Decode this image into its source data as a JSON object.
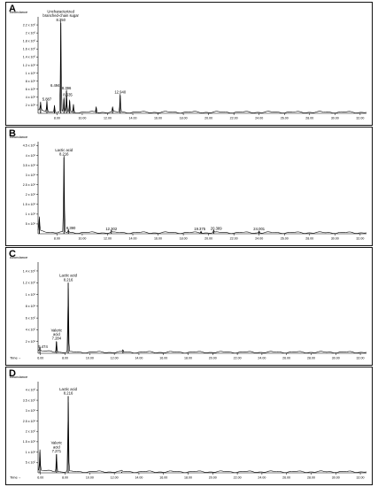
{
  "chart_data": [
    {
      "type": "line",
      "panel": "A",
      "ylabel": "Abundance",
      "xlabel": "",
      "xlim": [
        6.5,
        32.5
      ],
      "ylim": [
        0,
        2.4
      ],
      "yticks": [
        {
          "v": 0.2,
          "label": "2 x 10⁵"
        },
        {
          "v": 0.4,
          "label": "4 x 10⁵"
        },
        {
          "v": 0.6,
          "label": "6 x 10⁵"
        },
        {
          "v": 0.8,
          "label": "8 x 10⁵"
        },
        {
          "v": 1.0,
          "label": "1 x 10⁶"
        },
        {
          "v": 1.2,
          "label": "1.2 x 10⁶"
        },
        {
          "v": 1.4,
          "label": "1.4 x 10⁶"
        },
        {
          "v": 1.6,
          "label": "1.6 x 10⁶"
        },
        {
          "v": 1.8,
          "label": "1.8 x 10⁶"
        },
        {
          "v": 2.0,
          "label": "2 x 10⁶"
        },
        {
          "v": 2.2,
          "label": "2.2 x 10⁶"
        }
      ],
      "xticks": [
        "8.00",
        "10.00",
        "12.00",
        "14.00",
        "16.00",
        "18.00",
        "20.00",
        "22.00",
        "24.00",
        "26.00",
        "28.00",
        "30.00",
        "32.00"
      ],
      "peaks": [
        {
          "x": 6.7,
          "y": 0.2
        },
        {
          "x": 7.2,
          "y": 0.28
        },
        {
          "x": 7.8,
          "y": 0.18
        },
        {
          "x": 8.3,
          "y": 2.25
        },
        {
          "x": 8.55,
          "y": 0.35
        },
        {
          "x": 8.75,
          "y": 0.55
        },
        {
          "x": 9.0,
          "y": 0.3
        },
        {
          "x": 9.3,
          "y": 0.2
        },
        {
          "x": 11.1,
          "y": 0.14
        },
        {
          "x": 12.4,
          "y": 0.12
        },
        {
          "x": 13.0,
          "y": 0.45
        }
      ],
      "labels": [
        {
          "x": 8.3,
          "y": 2.25,
          "lines": [
            "Uncharacterized",
            "branched-chain sugar",
            "8.350"
          ]
        },
        {
          "x": 7.2,
          "y": 0.28,
          "lines": [
            "5.887"
          ]
        },
        {
          "x": 7.85,
          "y": 0.62,
          "lines": [
            "6.494"
          ]
        },
        {
          "x": 8.75,
          "y": 0.55,
          "lines": [
            "8.396"
          ]
        },
        {
          "x": 8.85,
          "y": 0.38,
          "lines": [
            "8.635"
          ]
        },
        {
          "x": 13.0,
          "y": 0.45,
          "lines": [
            "12.940"
          ]
        }
      ]
    },
    {
      "type": "line",
      "panel": "B",
      "ylabel": "Abundance",
      "xlabel": "",
      "xlim": [
        6.5,
        32.5
      ],
      "ylim": [
        0,
        4.7
      ],
      "yticks": [
        {
          "v": 0.5,
          "label": "5 x 10⁵"
        },
        {
          "v": 1.0,
          "label": "1 x 10⁶"
        },
        {
          "v": 1.5,
          "label": "1.5 x 10⁶"
        },
        {
          "v": 2.0,
          "label": "2 x 10⁶"
        },
        {
          "v": 2.5,
          "label": "2.5 x 10⁶"
        },
        {
          "v": 3.0,
          "label": "3 x 10⁶"
        },
        {
          "v": 3.5,
          "label": "3.5 x 10⁶"
        },
        {
          "v": 4.0,
          "label": "4 x 10⁶"
        },
        {
          "v": 4.5,
          "label": "4.5 x 10⁶"
        }
      ],
      "xticks": [
        "8.00",
        "10.00",
        "12.00",
        "14.00",
        "16.00",
        "18.00",
        "20.00",
        "22.00",
        "24.00",
        "26.00",
        "28.00",
        "30.00",
        "32.00"
      ],
      "peaks": [
        {
          "x": 6.6,
          "y": 0.7
        },
        {
          "x": 8.55,
          "y": 3.9
        },
        {
          "x": 8.9,
          "y": 0.14
        },
        {
          "x": 12.3,
          "y": 0.1
        },
        {
          "x": 19.4,
          "y": 0.1
        },
        {
          "x": 20.4,
          "y": 0.12
        },
        {
          "x": 24.0,
          "y": 0.1
        }
      ],
      "labels": [
        {
          "x": 8.55,
          "y": 3.9,
          "lines": [
            "Lactic acid",
            "8.216"
          ]
        },
        {
          "x": 9.1,
          "y": 0.14,
          "lines": [
            "8.390"
          ]
        },
        {
          "x": 12.3,
          "y": 0.1,
          "lines": [
            "12.302"
          ]
        },
        {
          "x": 19.3,
          "y": 0.1,
          "lines": [
            "19.375"
          ]
        },
        {
          "x": 20.6,
          "y": 0.12,
          "lines": [
            "20.389"
          ]
        },
        {
          "x": 24.0,
          "y": 0.1,
          "lines": [
            "24.001"
          ]
        }
      ]
    },
    {
      "type": "line",
      "panel": "C",
      "ylabel": "Abundance",
      "xlabel": "Time→",
      "xlim": [
        5.8,
        32.5
      ],
      "ylim": [
        0,
        1.55
      ],
      "yticks": [
        {
          "v": 0.2,
          "label": "2 x 10⁵"
        },
        {
          "v": 0.4,
          "label": "4 x 10⁵"
        },
        {
          "v": 0.6,
          "label": "6 x 10⁵"
        },
        {
          "v": 0.8,
          "label": "8 x 10⁵"
        },
        {
          "v": 1.0,
          "label": "1 x 10⁶"
        },
        {
          "v": 1.2,
          "label": "1.2 x 10⁶"
        },
        {
          "v": 1.4,
          "label": "1.4 x 10⁶"
        }
      ],
      "xticks": [
        "6.00",
        "8.00",
        "10.00",
        "12.00",
        "14.00",
        "16.00",
        "18.00",
        "20.00",
        "22.00",
        "24.00",
        "26.00",
        "28.00",
        "30.00",
        "32.00"
      ],
      "peaks": [
        {
          "x": 5.95,
          "y": 0.06
        },
        {
          "x": 7.3,
          "y": 0.2
        },
        {
          "x": 8.25,
          "y": 1.2
        },
        {
          "x": 12.7,
          "y": 0.04
        }
      ],
      "labels": [
        {
          "x": 8.25,
          "y": 1.2,
          "lines": [
            "Lactic acid",
            "8.216"
          ]
        },
        {
          "x": 7.3,
          "y": 0.2,
          "lines": [
            "Valeric",
            "acid",
            "7.284"
          ]
        },
        {
          "x": 6.2,
          "y": 0.06,
          "lines": [
            "5.474"
          ]
        }
      ]
    },
    {
      "type": "line",
      "panel": "D",
      "ylabel": "Abundance",
      "xlabel": "Time→",
      "xlim": [
        5.8,
        32.5
      ],
      "ylim": [
        0,
        4.4
      ],
      "yticks": [
        {
          "v": 0.5,
          "label": "5 x 10⁵"
        },
        {
          "v": 1.0,
          "label": "1 x 10⁶"
        },
        {
          "v": 1.5,
          "label": "1.5 x 10⁶"
        },
        {
          "v": 2.0,
          "label": "2 x 10⁶"
        },
        {
          "v": 2.5,
          "label": "2.5 x 10⁶"
        },
        {
          "v": 3.0,
          "label": "3 x 10⁶"
        },
        {
          "v": 3.5,
          "label": "3.5 x 10⁶"
        },
        {
          "v": 4.0,
          "label": "4 x 10⁶"
        }
      ],
      "xticks": [
        "6.00",
        "8.00",
        "10.00",
        "12.00",
        "14.00",
        "16.00",
        "18.00",
        "20.00",
        "22.00",
        "24.00",
        "26.00",
        "28.00",
        "30.00",
        "32.00"
      ],
      "peaks": [
        {
          "x": 5.95,
          "y": 1.0
        },
        {
          "x": 7.3,
          "y": 0.9
        },
        {
          "x": 8.25,
          "y": 3.7
        },
        {
          "x": 12.6,
          "y": 0.05
        }
      ],
      "labels": [
        {
          "x": 8.25,
          "y": 3.7,
          "lines": [
            "Lactic acid",
            "8.216"
          ]
        },
        {
          "x": 7.3,
          "y": 0.9,
          "lines": [
            "Valeric",
            "acid",
            "7.271"
          ]
        }
      ]
    }
  ]
}
